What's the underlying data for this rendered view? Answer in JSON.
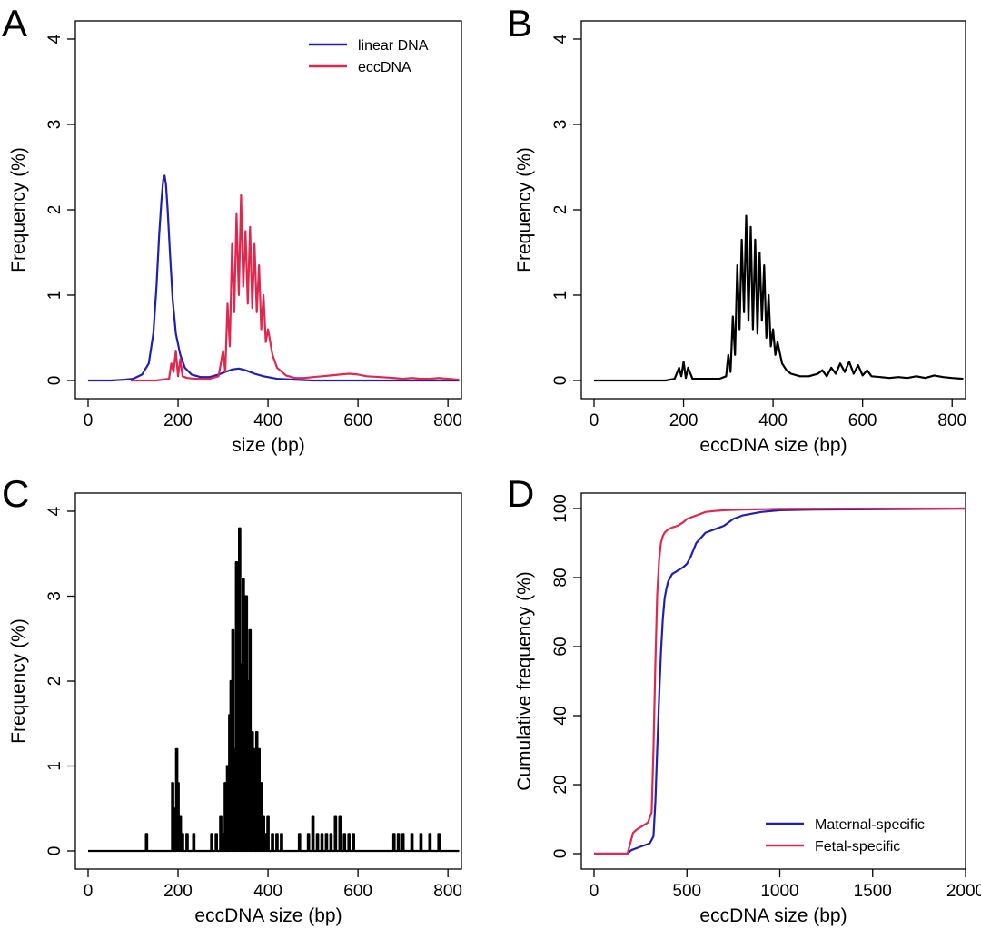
{
  "chart_data": [
    {
      "panel": "A",
      "type": "line",
      "xlabel": "size (bp)",
      "ylabel": "Frequency (%)",
      "xlim": [
        0,
        830
      ],
      "ylim": [
        0,
        4
      ],
      "xticks": [
        0,
        200,
        400,
        600,
        800
      ],
      "yticks": [
        0,
        1,
        2,
        3,
        4
      ],
      "legend": {
        "placement": "top-right"
      },
      "series": [
        {
          "name": "linear DNA",
          "color": "#1f1fb4",
          "x": [
            0,
            50,
            80,
            100,
            120,
            135,
            145,
            152,
            158,
            163,
            167,
            170,
            173,
            177,
            182,
            188,
            195,
            205,
            215,
            230,
            250,
            270,
            290,
            305,
            320,
            335,
            350,
            370,
            390,
            420,
            460,
            500,
            600,
            700,
            825
          ],
          "y": [
            0,
            0,
            0.01,
            0.02,
            0.07,
            0.2,
            0.55,
            1.1,
            1.7,
            2.1,
            2.35,
            2.4,
            2.3,
            2.0,
            1.5,
            0.95,
            0.55,
            0.3,
            0.15,
            0.07,
            0.04,
            0.04,
            0.07,
            0.1,
            0.13,
            0.14,
            0.12,
            0.08,
            0.05,
            0.02,
            0.01,
            0.0,
            0.0,
            0.0,
            0.0
          ]
        },
        {
          "name": "eccDNA",
          "color": "#e0284f",
          "x": [
            95,
            150,
            180,
            185,
            190,
            195,
            200,
            205,
            210,
            220,
            240,
            270,
            290,
            300,
            305,
            310,
            315,
            320,
            325,
            330,
            335,
            340,
            345,
            350,
            355,
            360,
            365,
            370,
            375,
            380,
            385,
            390,
            395,
            400,
            410,
            420,
            440,
            460,
            480,
            500,
            520,
            540,
            560,
            580,
            600,
            620,
            650,
            680,
            700,
            720,
            740,
            760,
            780,
            800,
            825
          ],
          "y": [
            0,
            0,
            0.02,
            0.2,
            0.1,
            0.35,
            0.05,
            0.25,
            0.05,
            0.03,
            0.02,
            0.02,
            0.05,
            0.35,
            0.1,
            0.9,
            0.4,
            1.6,
            0.8,
            1.95,
            1.0,
            2.17,
            1.1,
            1.75,
            0.9,
            1.8,
            0.85,
            1.6,
            0.8,
            1.35,
            0.6,
            1.0,
            0.45,
            0.6,
            0.3,
            0.15,
            0.06,
            0.03,
            0.03,
            0.04,
            0.05,
            0.06,
            0.07,
            0.08,
            0.07,
            0.05,
            0.04,
            0.03,
            0.02,
            0.03,
            0.02,
            0.02,
            0.03,
            0.02,
            0.01
          ]
        }
      ]
    },
    {
      "panel": "B",
      "type": "line",
      "xlabel": "eccDNA size (bp)",
      "ylabel": "Frequency (%)",
      "xlim": [
        0,
        830
      ],
      "ylim": [
        0,
        4
      ],
      "xticks": [
        0,
        200,
        400,
        600,
        800
      ],
      "yticks": [
        0,
        1,
        2,
        3,
        4
      ],
      "series": [
        {
          "name": "eccDNA",
          "color": "#000000",
          "x": [
            0,
            160,
            180,
            190,
            195,
            200,
            205,
            210,
            220,
            240,
            260,
            280,
            295,
            300,
            305,
            310,
            315,
            320,
            325,
            330,
            335,
            340,
            345,
            350,
            355,
            360,
            365,
            370,
            375,
            380,
            385,
            390,
            395,
            400,
            405,
            410,
            420,
            430,
            440,
            460,
            480,
            500,
            510,
            520,
            530,
            540,
            550,
            560,
            570,
            580,
            590,
            600,
            610,
            620,
            640,
            660,
            680,
            700,
            720,
            740,
            760,
            780,
            800,
            825
          ],
          "y": [
            0,
            0,
            0.02,
            0.15,
            0.05,
            0.22,
            0.03,
            0.15,
            0.02,
            0.02,
            0.02,
            0.02,
            0.05,
            0.3,
            0.1,
            0.75,
            0.3,
            1.35,
            0.6,
            1.65,
            0.8,
            1.93,
            0.7,
            1.8,
            0.6,
            1.65,
            0.55,
            1.5,
            0.7,
            1.35,
            0.5,
            1.0,
            0.4,
            0.6,
            0.3,
            0.45,
            0.2,
            0.12,
            0.08,
            0.05,
            0.05,
            0.08,
            0.12,
            0.05,
            0.15,
            0.08,
            0.2,
            0.1,
            0.22,
            0.08,
            0.18,
            0.06,
            0.12,
            0.05,
            0.04,
            0.03,
            0.04,
            0.03,
            0.05,
            0.03,
            0.06,
            0.04,
            0.03,
            0.02
          ]
        }
      ]
    },
    {
      "panel": "C",
      "type": "line",
      "xlabel": "eccDNA size (bp)",
      "ylabel": "Frequency (%)",
      "xlim": [
        0,
        830
      ],
      "ylim": [
        0,
        4
      ],
      "xticks": [
        0,
        200,
        400,
        600,
        800
      ],
      "yticks": [
        0,
        1,
        2,
        3,
        4
      ],
      "series": [
        {
          "name": "eccDNA",
          "color": "#000000",
          "spikes": [
            [
              130,
              0.2
            ],
            [
              188,
              0.8
            ],
            [
              192,
              0.5
            ],
            [
              197,
              1.2
            ],
            [
              200,
              0.8
            ],
            [
              205,
              0.4
            ],
            [
              210,
              0.2
            ],
            [
              220,
              0.2
            ],
            [
              235,
              0.2
            ],
            [
              275,
              0.2
            ],
            [
              285,
              0.2
            ],
            [
              295,
              0.4
            ],
            [
              300,
              0.2
            ],
            [
              305,
              0.8
            ],
            [
              310,
              1.0
            ],
            [
              315,
              1.6
            ],
            [
              318,
              2.0
            ],
            [
              322,
              2.6
            ],
            [
              325,
              1.2
            ],
            [
              330,
              3.4
            ],
            [
              333,
              2.0
            ],
            [
              337,
              3.8
            ],
            [
              340,
              2.2
            ],
            [
              345,
              3.2
            ],
            [
              348,
              1.6
            ],
            [
              352,
              3.0
            ],
            [
              356,
              2.0
            ],
            [
              360,
              2.6
            ],
            [
              365,
              1.4
            ],
            [
              370,
              1.2
            ],
            [
              375,
              1.4
            ],
            [
              380,
              1.2
            ],
            [
              385,
              0.8
            ],
            [
              390,
              0.4
            ],
            [
              395,
              0.2
            ],
            [
              400,
              0.4
            ],
            [
              410,
              0.2
            ],
            [
              420,
              0.2
            ],
            [
              430,
              0.2
            ],
            [
              470,
              0.2
            ],
            [
              490,
              0.2
            ],
            [
              500,
              0.4
            ],
            [
              510,
              0.2
            ],
            [
              520,
              0.2
            ],
            [
              530,
              0.2
            ],
            [
              540,
              0.2
            ],
            [
              550,
              0.4
            ],
            [
              560,
              0.4
            ],
            [
              570,
              0.2
            ],
            [
              580,
              0.2
            ],
            [
              590,
              0.2
            ],
            [
              680,
              0.2
            ],
            [
              690,
              0.2
            ],
            [
              700,
              0.2
            ],
            [
              720,
              0.2
            ],
            [
              740,
              0.2
            ],
            [
              760,
              0.2
            ],
            [
              780,
              0.2
            ]
          ]
        }
      ]
    },
    {
      "panel": "D",
      "type": "line",
      "xlabel": "eccDNA size (bp)",
      "ylabel": "Cumulative frequency (%)",
      "xlim": [
        0,
        2000
      ],
      "ylim": [
        0,
        100
      ],
      "xticks": [
        0,
        500,
        1000,
        1500,
        2000
      ],
      "yticks": [
        0,
        20,
        40,
        60,
        80,
        100
      ],
      "legend": {
        "placement": "bottom-right"
      },
      "series": [
        {
          "name": "Maternal-specific",
          "color": "#1f1fb4",
          "x": [
            0,
            180,
            200,
            250,
            300,
            320,
            330,
            340,
            350,
            360,
            370,
            380,
            390,
            400,
            420,
            450,
            480,
            500,
            520,
            550,
            600,
            650,
            700,
            750,
            800,
            900,
            1000,
            1200,
            1500,
            2000
          ],
          "y": [
            0,
            0,
            1,
            2,
            3,
            5,
            15,
            30,
            45,
            58,
            68,
            74,
            77,
            79,
            81,
            82,
            83,
            84,
            86,
            90,
            93,
            94,
            95,
            97,
            98,
            99,
            99.5,
            99.7,
            99.8,
            100
          ]
        },
        {
          "name": "Fetal-specific",
          "color": "#e0284f",
          "x": [
            0,
            180,
            200,
            210,
            230,
            260,
            290,
            310,
            320,
            330,
            340,
            350,
            360,
            370,
            380,
            400,
            420,
            450,
            480,
            500,
            550,
            600,
            650,
            700,
            800,
            900,
            1000,
            1500,
            2000
          ],
          "y": [
            0,
            0,
            4,
            6,
            7,
            8,
            9,
            12,
            30,
            55,
            75,
            85,
            90,
            92,
            93,
            94,
            94.5,
            95,
            96,
            97,
            98,
            99,
            99.3,
            99.5,
            99.7,
            99.8,
            99.9,
            100,
            100
          ]
        }
      ]
    }
  ]
}
